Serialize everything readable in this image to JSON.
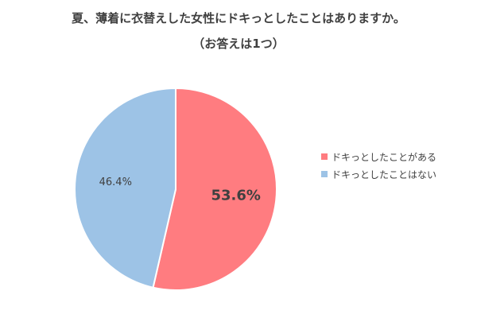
{
  "chart_data": {
    "type": "pie",
    "title": "夏、薄着に衣替えした女性にドキっとしたことはありますか。",
    "subtitle": "（お答えは1つ）",
    "categories": [
      "ドキっとしたことがある",
      "ドキっとしたことはない"
    ],
    "values": [
      53.6,
      46.4
    ],
    "data_labels": [
      "53.6%",
      "46.4%"
    ],
    "colors": [
      "#ff7c80",
      "#9dc3e6"
    ],
    "start_angle": "12 o'clock",
    "direction": "clockwise",
    "legend": "right"
  }
}
